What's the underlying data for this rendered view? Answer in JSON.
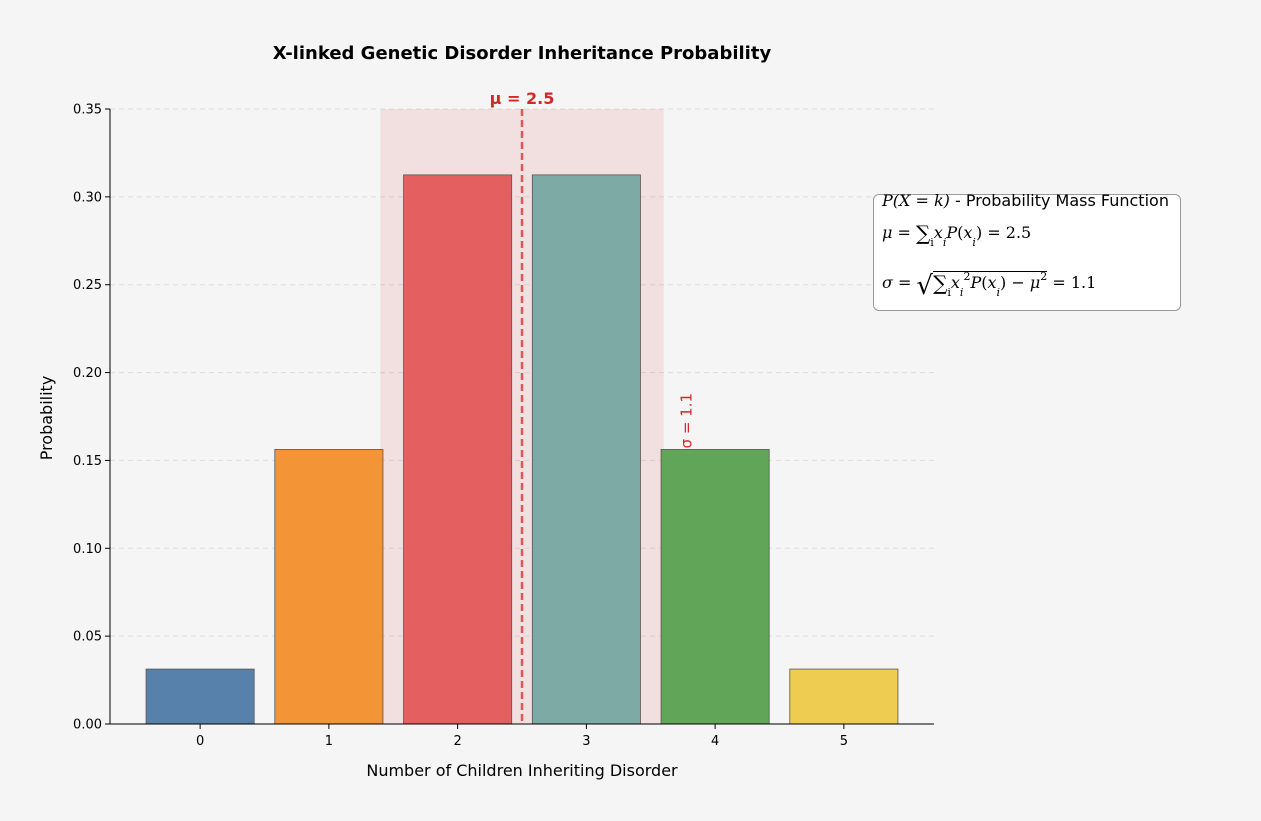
{
  "chart_data": {
    "type": "bar",
    "title": "X-linked Genetic Disorder Inheritance Probability",
    "xlabel": "Number of Children Inheriting Disorder",
    "ylabel": "Probability",
    "categories": [
      "0",
      "1",
      "2",
      "3",
      "4",
      "5"
    ],
    "x": [
      0,
      1,
      2,
      3,
      4,
      5
    ],
    "values": [
      0.03125,
      0.15625,
      0.3125,
      0.3125,
      0.15625,
      0.03125
    ],
    "colors": [
      "#4e79a7",
      "#f28e2b",
      "#e15759",
      "#76a7a1",
      "#59a14f",
      "#edc948"
    ],
    "ylim": [
      0,
      0.35
    ],
    "yticks": [
      0.0,
      0.05,
      0.1,
      0.15,
      0.2,
      0.25,
      0.3,
      0.35
    ],
    "ytick_labels": [
      "0.00",
      "0.05",
      "0.10",
      "0.15",
      "0.20",
      "0.25",
      "0.30",
      "0.35"
    ],
    "mean": 2.5,
    "std": 1.1,
    "mean_label": "μ = 2.5",
    "sigma_label": "σ = 1.1",
    "grid": "y-dashed",
    "formula": {
      "line1_var": "P(X = k)",
      "line1_text": " - Probability Mass Function",
      "mean_value": "= 2.5",
      "std_value": "= 1.1"
    }
  }
}
